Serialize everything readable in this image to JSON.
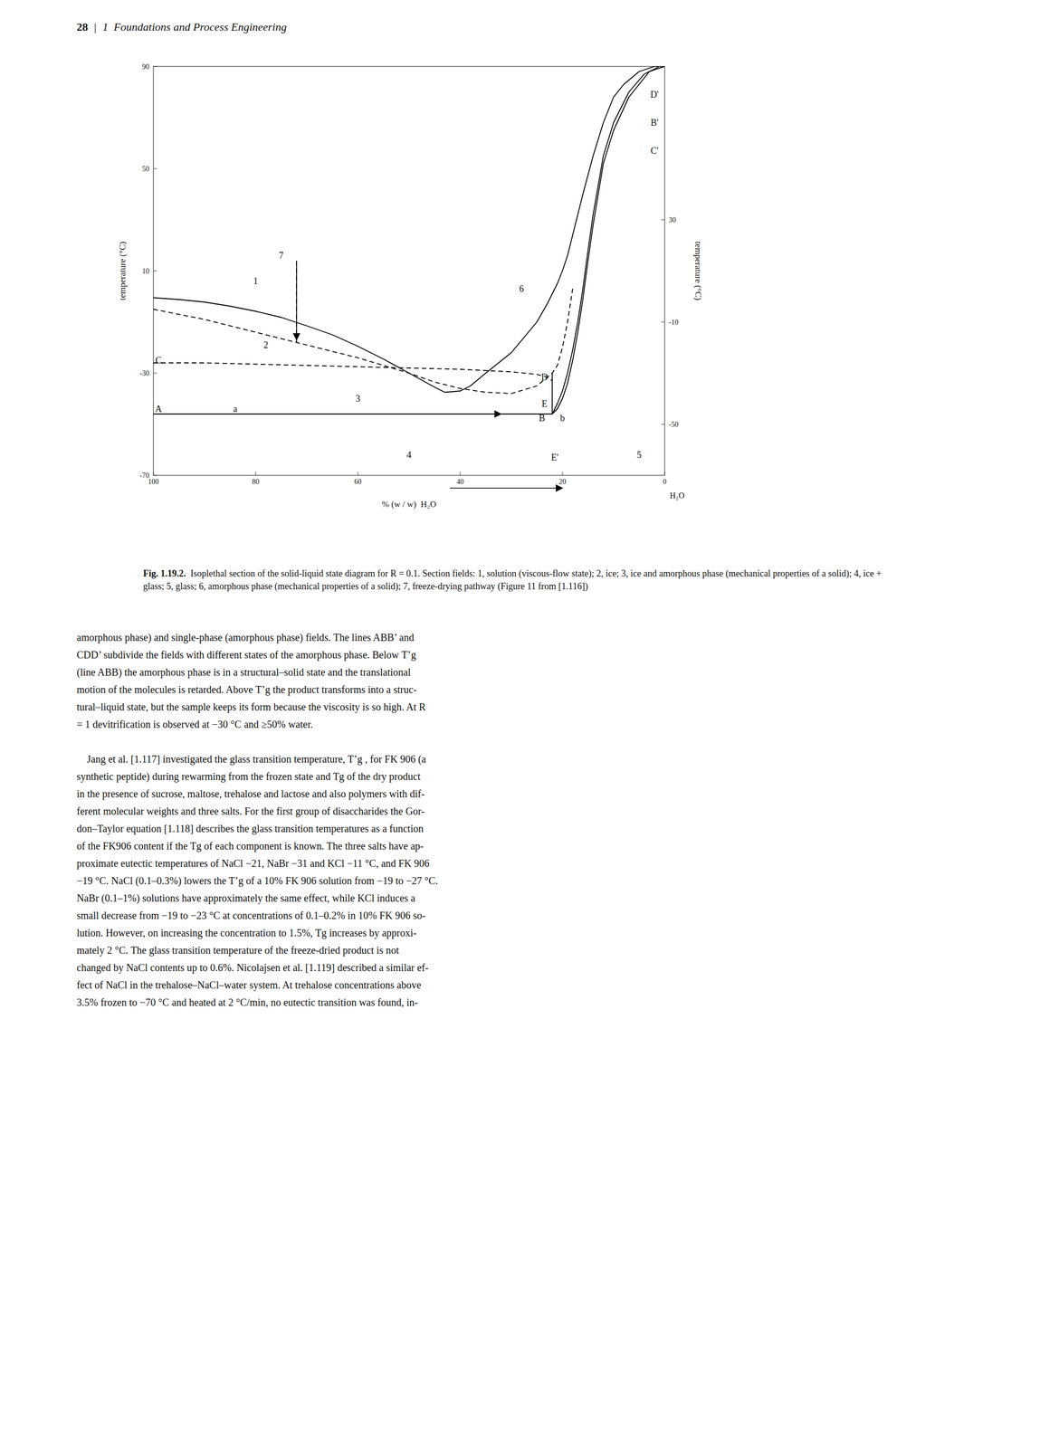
{
  "header_text": "28",
  "header_separator": "|",
  "header_chapter": "1  Foundations and Process Engineering",
  "chart_data": {
    "type": "line",
    "xlim": [
      100,
      0
    ],
    "ylim": [
      -70,
      90
    ],
    "xticks": [
      100,
      80,
      60,
      40,
      20,
      0
    ],
    "yticks": [
      -70,
      -30,
      10,
      50,
      90
    ],
    "y2lim": [
      -70,
      90
    ],
    "y2ticks": [
      -50,
      -10,
      30
    ],
    "xlabel": "% (w / w)  H₂O",
    "x_axis_end_label": "H₂O",
    "ylabel": "temperature (°C)",
    "y2label": "temperature (°C)",
    "grid": false,
    "series": [
      {
        "x": [
          100,
          95,
          90,
          85,
          80,
          75,
          70,
          65,
          60,
          55,
          50,
          45,
          43,
          40,
          38,
          35,
          30,
          25,
          23,
          21,
          20,
          19,
          18,
          16,
          14,
          12,
          10,
          8,
          5,
          2,
          0
        ],
        "values": [
          -0.5,
          -1.2,
          -2.2,
          -3.8,
          -5.8,
          -8.2,
          -11.5,
          -15.0,
          -19.5,
          -24.5,
          -30.0,
          -35.5,
          -37.5,
          -37.0,
          -35.0,
          -30.0,
          -22.0,
          -10.0,
          -3.0,
          5.0,
          10.0,
          16.0,
          24.0,
          40.0,
          55.0,
          68.0,
          78.0,
          83.0,
          88.0,
          90.0,
          90.0
        ],
        "color": "#000000",
        "line_style": "solid"
      },
      {
        "x": [
          100,
          90,
          80,
          70,
          60,
          50,
          45,
          40,
          35,
          30,
          25,
          22,
          21,
          20,
          19,
          18
        ],
        "values": [
          -5.0,
          -9.0,
          -14.0,
          -19.0,
          -24.0,
          -30.0,
          -33.5,
          -36.0,
          -37.5,
          -38.0,
          -35.0,
          -30.0,
          -27.0,
          -20.0,
          -10.0,
          3.0
        ],
        "color": "#000000",
        "line_style": "dashed"
      },
      {
        "x": [
          100,
          22
        ],
        "values": [
          -46.0,
          -46.0
        ],
        "color": "#000000",
        "line_style": "solid"
      },
      {
        "x": [
          22,
          21,
          20,
          19,
          18,
          17,
          16,
          15,
          14,
          12,
          10,
          7,
          4,
          1,
          0
        ],
        "values": [
          -46.0,
          -42.0,
          -37.0,
          -30.0,
          -21.0,
          -10.0,
          3.0,
          18.0,
          32.0,
          55.0,
          68.0,
          80.0,
          87.0,
          90.0,
          90.0
        ],
        "color": "#000000",
        "line_style": "solid"
      },
      {
        "x": [
          22,
          21,
          20,
          19,
          18,
          17,
          16,
          15,
          14,
          12,
          10,
          7,
          3,
          0
        ],
        "values": [
          -46.0,
          -44.0,
          -40.0,
          -34.0,
          -25.0,
          -14.0,
          -1.0,
          14.0,
          28.0,
          52.0,
          65.0,
          78.0,
          88.0,
          90.0
        ],
        "color": "#000000",
        "line_style": "solid"
      },
      {
        "x": [
          100,
          90,
          80,
          70,
          60,
          50,
          40,
          30,
          25,
          23,
          22
        ],
        "values": [
          -26.0,
          -26.0,
          -26.5,
          -27.0,
          -27.5,
          -28.0,
          -28.5,
          -29.5,
          -30.5,
          -31.5,
          -33.0
        ],
        "color": "#000000",
        "line_style": "dashed"
      },
      {
        "x": [
          72,
          72
        ],
        "values": [
          14.0,
          -18.0
        ],
        "color": "#000000",
        "line_style": "dashed"
      },
      {
        "x": [
          22,
          22
        ],
        "values": [
          -30,
          -46
        ],
        "color": "#000000",
        "line_style": "solid"
      }
    ],
    "arrows": [
      {
        "x1": 58,
        "y1": -46,
        "x2": 32,
        "y2": -46
      },
      {
        "x1": 72,
        "y1": 13,
        "x2": 72,
        "y2": -17
      },
      {
        "x1": 42,
        "y1": -75,
        "x2": 20,
        "y2": -75
      }
    ],
    "annotations": [
      {
        "text": "1",
        "x": 80,
        "y": 6.0
      },
      {
        "text": "2",
        "x": 78,
        "y": -19.0
      },
      {
        "text": "3",
        "x": 60,
        "y": -40.0
      },
      {
        "text": "4",
        "x": 50,
        "y": -62.0
      },
      {
        "text": "5",
        "x": 5,
        "y": -62.0
      },
      {
        "text": "6",
        "x": 28,
        "y": 3.0
      },
      {
        "text": "7",
        "x": 75,
        "y": 16.0
      },
      {
        "text": "A",
        "x": 99,
        "y": -44.0
      },
      {
        "text": "a",
        "x": 84,
        "y": -44.0
      },
      {
        "text": "C",
        "x": 99,
        "y": -25.0
      },
      {
        "text": "D",
        "x": 23.5,
        "y": -31.5
      },
      {
        "text": "E",
        "x": 23.5,
        "y": -42.0
      },
      {
        "text": "B",
        "x": 24.0,
        "y": -47.5
      },
      {
        "text": "b",
        "x": 20.0,
        "y": -47.5
      },
      {
        "text": "D'",
        "x": 2.0,
        "y": 79.0
      },
      {
        "text": "B'",
        "x": 2.0,
        "y": 68.0
      },
      {
        "text": "C'",
        "x": 2.0,
        "y": 57.0
      },
      {
        "text": "E'",
        "x": 21.5,
        "y": -63.0
      }
    ]
  },
  "caption_bold": "Fig. 1.19.2.",
  "caption_text": "  Isoplethal section of the solid-liquid state diagram for R = 0.1. Section fields: 1, solution (viscous-flow state); 2, ice; 3, ice and amorphous phase (mechanical properties",
  "caption_text2": "of a solid); 4, ice + glass; 5, glass; 6, amorphous phase (mechanical properties of a solid); 7, freeze-drying pathway (Figure 11 from [1.116])",
  "body_text": [
    "amorphous phase) and single-phase (amorphous phase) fields. The lines ABB’ and",
    "CDD’ subdivide the fields with different states of the amorphous phase. Below T’g",
    "(line ABB) the amorphous phase is in a structural–solid state and the translational",
    "motion of the molecules is retarded. Above T’g the product transforms into a struc-",
    "tural–liquid state, but the sample keeps its form because the viscosity is so high. At R",
    "= 1 devitrification is observed at −30 °C and ≥50% water.",
    "",
    "\tJang et al. [1.117] investigated the glass transition temperature, T’g , for FK 906 (a",
    "synthetic peptide) during rewarming from the frozen state and Tg of the dry product",
    "in the presence of sucrose, maltose, trehalose and lactose and also polymers with dif-",
    "ferent molecular weights and three salts. For the first group of disaccharides the Gor-",
    "don–Taylor equation [1.118] describes the glass transition temperatures as a function",
    "of the FK906 content if the Tg of each component is known. The three salts have ap-",
    "proximate eutectic temperatures of NaCl −21, NaBr −31 and KCl −11 °C, and FK 906",
    "−19 °C. NaCl (0.1–0.3%) lowers the T’g of a 10% FK 906 solution from −19 to −27 °C.",
    "NaBr (0.1–1%) solutions have approximately the same effect, while KCl induces a",
    "small decrease from −19 to −23 °C at concentrations of 0.1–0.2% in 10% FK 906 so-",
    "lution. However, on increasing the concentration to 1.5%, Tg increases by approxi-",
    "mately 2 °C. The glass transition temperature of the freeze-dried product is not",
    "changed by NaCl contents up to 0.6%. Nicolajsen et al. [1.119] described a similar ef-",
    "fect of NaCl in the trehalose–NaCl–water system. At trehalose concentrations above",
    "3.5% frozen to −70 °C and heated at 2 °C/min, no eutectic transition was found, in-"
  ]
}
